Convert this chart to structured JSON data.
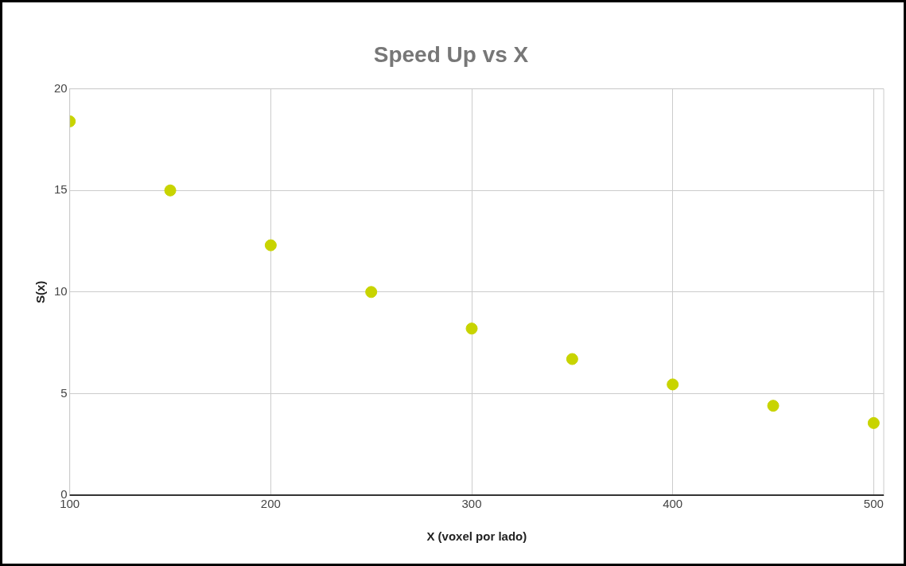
{
  "chart_data": {
    "type": "scatter",
    "title": "Speed Up vs X",
    "xlabel": "X (voxel por lado)",
    "ylabel": "S(x)",
    "x": [
      100,
      150,
      200,
      250,
      300,
      350,
      400,
      450,
      500
    ],
    "values": [
      18.4,
      15.0,
      12.3,
      10.0,
      8.2,
      6.7,
      5.45,
      4.4,
      3.55
    ],
    "color": "#c8d400",
    "xlim": [
      100,
      505
    ],
    "xticks": [
      100,
      200,
      300,
      400,
      500
    ],
    "ylim": [
      0,
      20
    ],
    "yticks": [
      0,
      5,
      10,
      15,
      20
    ],
    "grid": true,
    "marker": "circle",
    "legend": false
  }
}
